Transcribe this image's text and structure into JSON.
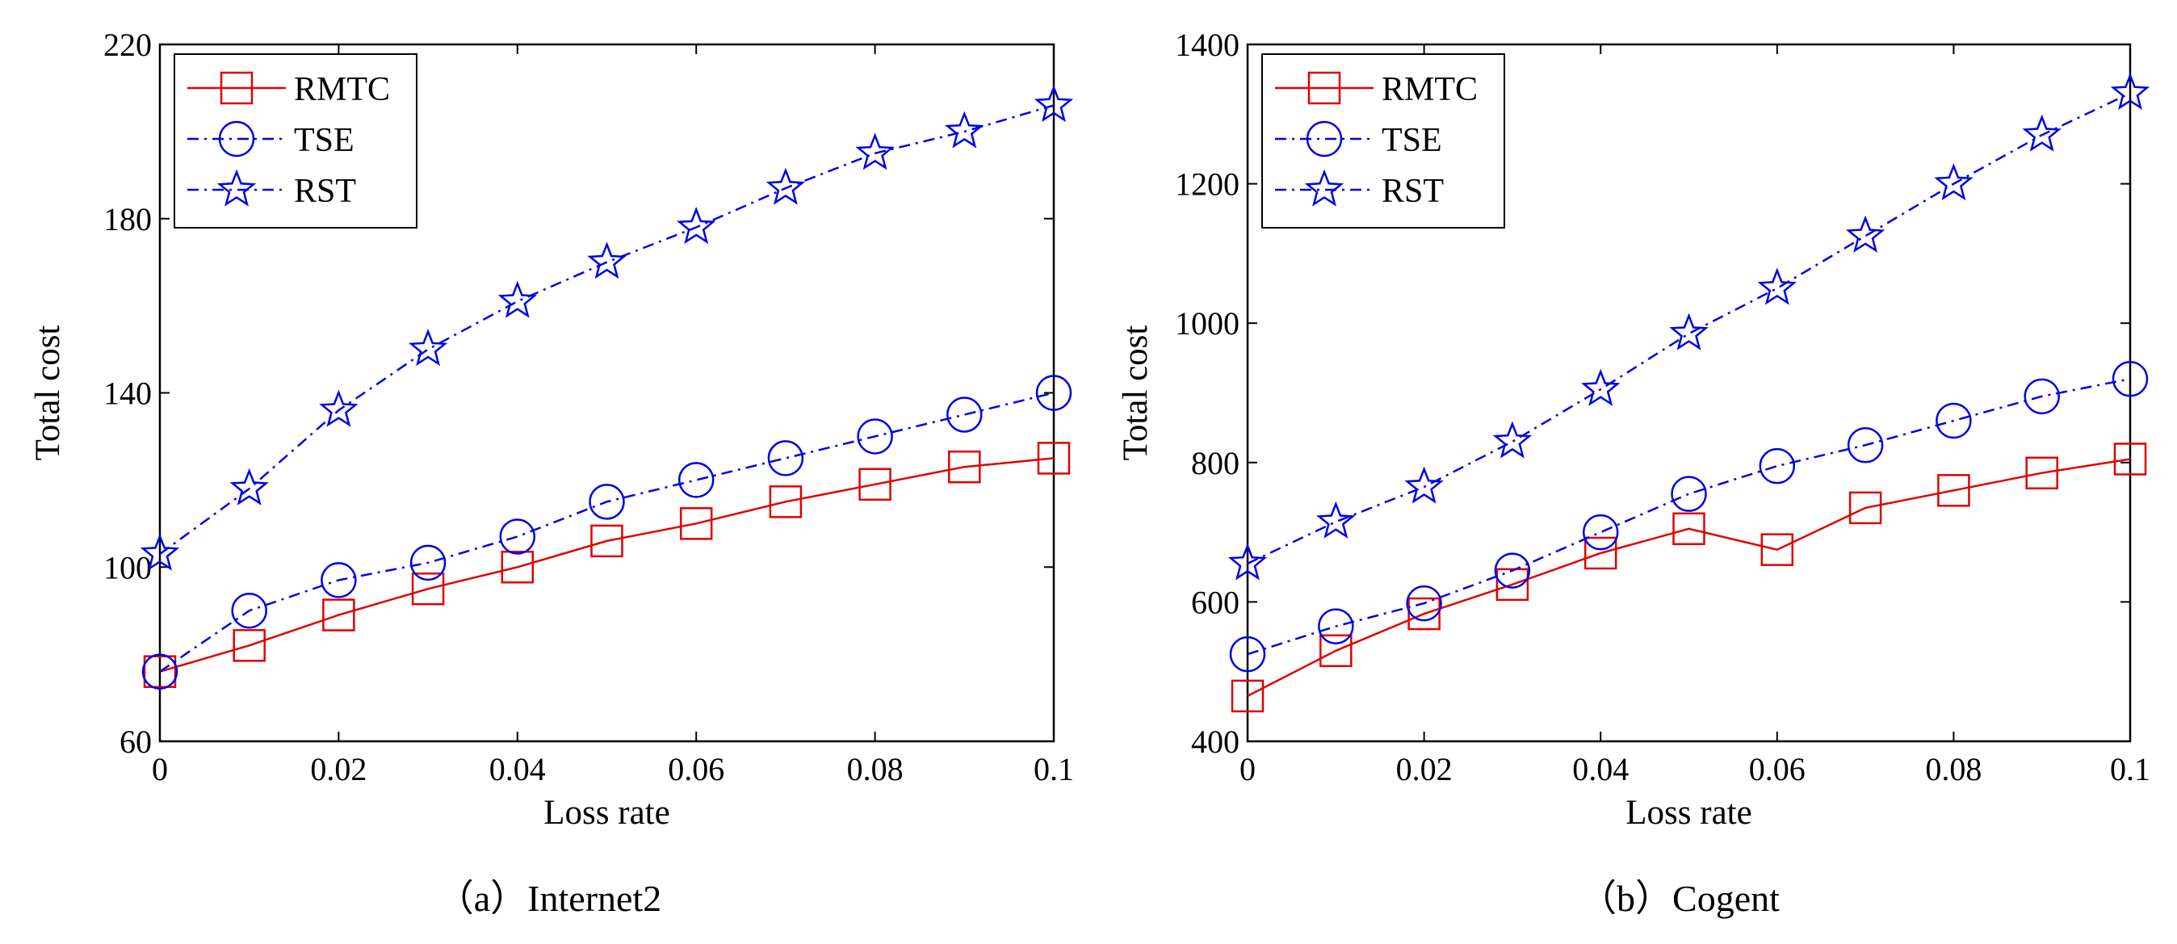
{
  "chart_data": [
    {
      "type": "line",
      "caption": "（a）Internet2",
      "xlabel": "Loss rate",
      "ylabel": "Total cost",
      "xlim": [
        0,
        0.1
      ],
      "ylim": [
        60,
        220
      ],
      "xticks": [
        0,
        0.02,
        0.04,
        0.06,
        0.08,
        0.1
      ],
      "xtick_labels": [
        "0",
        "0.02",
        "0.04",
        "0.06",
        "0.08",
        "0.1"
      ],
      "yticks": [
        60,
        100,
        140,
        180,
        220
      ],
      "ytick_labels": [
        "60",
        "100",
        "140",
        "180",
        "220"
      ],
      "x": [
        0,
        0.01,
        0.02,
        0.03,
        0.04,
        0.05,
        0.06,
        0.07,
        0.08,
        0.09,
        0.1
      ],
      "series": [
        {
          "name": "RMTC",
          "color": "#e00000",
          "dash": "solid",
          "marker": "square",
          "values": [
            76,
            82,
            89,
            95,
            100,
            106,
            110,
            115,
            119,
            123,
            125
          ]
        },
        {
          "name": "TSE",
          "color": "#0000e6",
          "dash": "dashdot",
          "marker": "circle",
          "values": [
            76,
            90,
            97,
            101,
            107,
            115,
            120,
            125,
            130,
            135,
            140
          ]
        },
        {
          "name": "RST",
          "color": "#0000e6",
          "dash": "dashdot",
          "marker": "star",
          "values": [
            103,
            118,
            136,
            150,
            161,
            170,
            178,
            187,
            195,
            200,
            206
          ]
        }
      ],
      "legend_position": "top-left",
      "grid": false
    },
    {
      "type": "line",
      "caption": "（b）Cogent",
      "xlabel": "Loss rate",
      "ylabel": "Total cost",
      "xlim": [
        0,
        0.1
      ],
      "ylim": [
        400,
        1400
      ],
      "xticks": [
        0,
        0.02,
        0.04,
        0.06,
        0.08,
        0.1
      ],
      "xtick_labels": [
        "0",
        "0.02",
        "0.04",
        "0.06",
        "0.08",
        "0.1"
      ],
      "yticks": [
        400,
        600,
        800,
        1000,
        1200,
        1400
      ],
      "ytick_labels": [
        "400",
        "600",
        "800",
        "1000",
        "1200",
        "1400"
      ],
      "x": [
        0,
        0.01,
        0.02,
        0.03,
        0.04,
        0.05,
        0.06,
        0.07,
        0.08,
        0.09,
        0.1
      ],
      "series": [
        {
          "name": "RMTC",
          "color": "#e00000",
          "dash": "solid",
          "marker": "square",
          "values": [
            465,
            530,
            583,
            625,
            670,
            705,
            675,
            735,
            760,
            785,
            805
          ]
        },
        {
          "name": "TSE",
          "color": "#0000e6",
          "dash": "dashdot",
          "marker": "circle",
          "values": [
            525,
            565,
            598,
            645,
            700,
            755,
            795,
            825,
            860,
            895,
            920
          ]
        },
        {
          "name": "RST",
          "color": "#0000e6",
          "dash": "dashdot",
          "marker": "star",
          "values": [
            655,
            715,
            765,
            830,
            905,
            985,
            1050,
            1125,
            1200,
            1270,
            1330
          ]
        }
      ],
      "legend_position": "top-left",
      "grid": false
    }
  ]
}
